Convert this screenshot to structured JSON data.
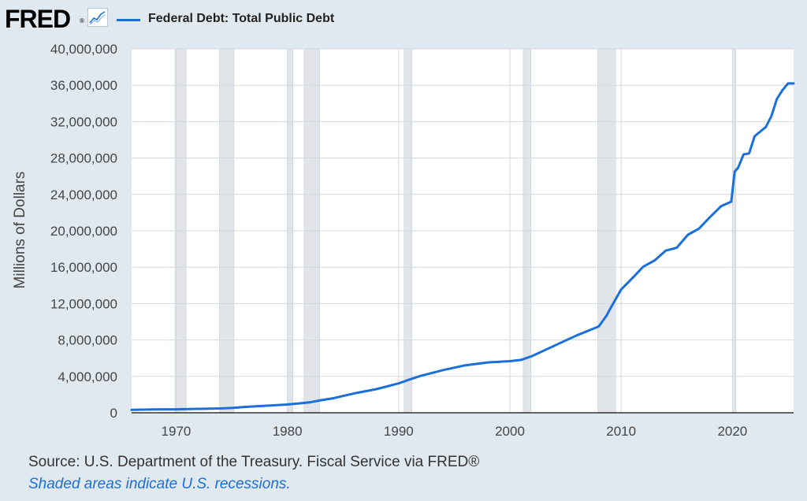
{
  "header": {
    "logo": "FRED",
    "logo_mark": "®",
    "logo_icon": "line-chart-icon",
    "legend_label": "Federal Debt: Total Public Debt"
  },
  "footer": {
    "source": "Source: U.S. Department of the Treasury. Fiscal Service via FRED®",
    "note": "Shaded areas indicate U.S. recessions."
  },
  "colors": {
    "background": "#e1e9f0",
    "plot_bg": "#ffffff",
    "line": "#1a6fd8",
    "recession": "#e1e5ea",
    "grid": "#d0d8e0"
  },
  "chart_data": {
    "type": "line",
    "title": "Federal Debt: Total Public Debt",
    "xlabel": "",
    "ylabel": "Millions of Dollars",
    "xlim": [
      1966.0,
      2025.5
    ],
    "ylim": [
      0,
      40000000
    ],
    "grid": true,
    "legend": "top-left",
    "xticks": [
      1970,
      1980,
      1990,
      2000,
      2010,
      2020
    ],
    "yticks": [
      0,
      4000000,
      8000000,
      12000000,
      16000000,
      20000000,
      24000000,
      28000000,
      32000000,
      36000000,
      40000000
    ],
    "ytick_labels": [
      "0",
      "4,000,000",
      "8,000,000",
      "12,000,000",
      "16,000,000",
      "20,000,000",
      "24,000,000",
      "28,000,000",
      "32,000,000",
      "36,000,000",
      "40,000,000"
    ],
    "recessions": [
      [
        1969.9,
        1970.9
      ],
      [
        1973.9,
        1975.2
      ],
      [
        1980.0,
        1980.5
      ],
      [
        1981.5,
        1982.9
      ],
      [
        1990.5,
        1991.2
      ],
      [
        2001.2,
        2001.9
      ],
      [
        2007.9,
        2009.5
      ],
      [
        2020.1,
        2020.3
      ]
    ],
    "series": [
      {
        "name": "Federal Debt: Total Public Debt",
        "x": [
          1966.0,
          1968,
          1970,
          1972,
          1974,
          1975,
          1976,
          1978,
          1980,
          1982,
          1983,
          1984,
          1986,
          1988,
          1990,
          1991,
          1992,
          1994,
          1996,
          1998,
          2000,
          2001,
          2002,
          2004,
          2006,
          2008,
          2008.7,
          2009,
          2010,
          2011,
          2012,
          2013,
          2014,
          2015,
          2016,
          2017,
          2018,
          2019,
          2019.9,
          2020.2,
          2020.5,
          2021,
          2021.5,
          2022,
          2022.5,
          2023,
          2023.5,
          2024,
          2024.5,
          2025,
          2025.5
        ],
        "values": [
          320000,
          360000,
          380000,
          430000,
          480000,
          530000,
          620000,
          770000,
          910000,
          1140000,
          1380000,
          1570000,
          2130000,
          2600000,
          3230000,
          3660000,
          4060000,
          4690000,
          5220000,
          5530000,
          5670000,
          5810000,
          6230000,
          7380000,
          8500000,
          9490000,
          10700000,
          11400000,
          13560000,
          14790000,
          16070000,
          16740000,
          17820000,
          18150000,
          19570000,
          20240000,
          21520000,
          22720000,
          23200000,
          26500000,
          26900000,
          28400000,
          28500000,
          30400000,
          30900000,
          31400000,
          32600000,
          34500000,
          35460000,
          36200000,
          36200000
        ]
      }
    ]
  }
}
